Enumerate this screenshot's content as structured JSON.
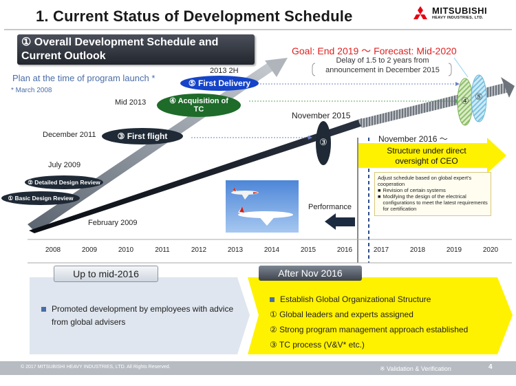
{
  "header": {
    "title": "1. Current Status of Development Schedule",
    "brand": "MITSUBISHI",
    "brand_sub": "HEAVY INDUSTRIES, LTD."
  },
  "section_label": "① Overall Development Schedule and Current Outlook",
  "goal": "Goal: End 2019 ～ Forecast: Mid-2020",
  "delay_note": "Delay of 1.5 to 2 years from announcement in December 2015",
  "plan": {
    "label": "Plan at the time of program launch *",
    "note": "* March 2008"
  },
  "milestones": {
    "first_delivery_date": "2013 2H",
    "first_delivery": "⑤ First Delivery",
    "tc_date": "Mid 2013",
    "tc": "④ Acquisition of TC",
    "first_flight_date": "December 2011",
    "first_flight": "③ First flight",
    "detailed_date": "July 2009",
    "detailed": "② Detailed Design Review",
    "basic": "① Basic Design Review",
    "feb_2009": "February 2009",
    "nov_2015": "November 2015",
    "nov_2015_mark": "③",
    "mark_4": "④",
    "mark_5": "⑤"
  },
  "nov_2016": "November 2016 ～",
  "ceo_arrow": "Structure under direct oversight of CEO",
  "adjust_box": {
    "intro": "Adjust schedule based on global expert's cooperation",
    "items": [
      "Revision of certain systems",
      "Modifying the design of the electrical configurations to meet the latest requirements for certification"
    ]
  },
  "performance": "Performance",
  "years": [
    "2008",
    "2009",
    "2010",
    "2011",
    "2012",
    "2013",
    "2014",
    "2015",
    "2016",
    "2017",
    "2018",
    "2019",
    "2020"
  ],
  "left_panel": {
    "heading": "Up to mid-2016",
    "bullet": "Promoted development by employees with advice from global advisers"
  },
  "right_panel": {
    "heading": "After Nov 2016",
    "bullet": "Establish Global Organizational Structure",
    "items": [
      "① Global leaders and experts assigned",
      "② Strong program management approach established",
      "③ TC process (V&V* etc.)"
    ]
  },
  "footer": {
    "copyright": "© 2017 MITSUBISHI HEAVY INDUSTRIES, LTD.  All Rights Reserved.",
    "vv_note": "※ Validation & Verification",
    "page": "4"
  },
  "colors": {
    "accent_blue": "#4a6da7",
    "goal_red": "#e02020",
    "ellipse_blue": "#1544c8",
    "ellipse_green": "#1e6b2a",
    "ellipse_dark": "#1f2a36",
    "right_yellow": "#fff200"
  }
}
